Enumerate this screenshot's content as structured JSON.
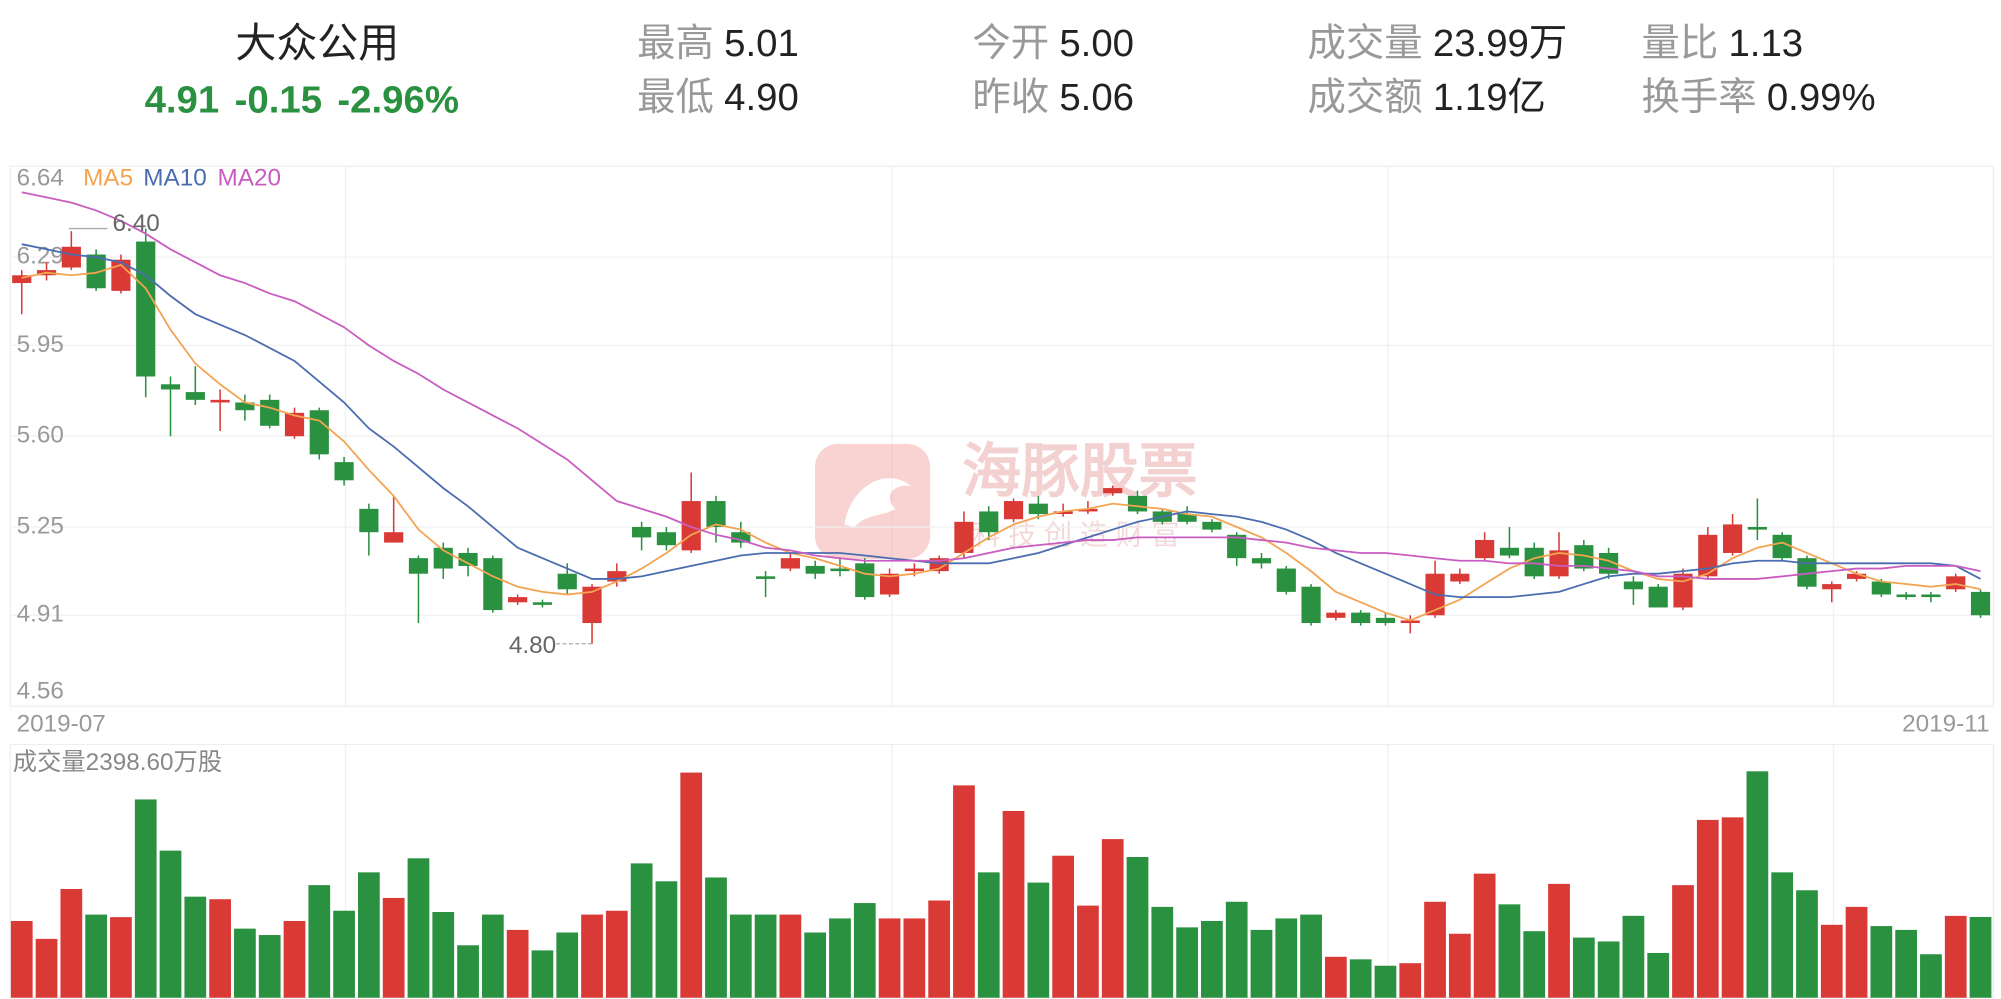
{
  "header": {
    "name": "大众公用",
    "price": "4.91",
    "change": "-0.15",
    "change_pct": "-2.96%",
    "stats": [
      {
        "label": "最高",
        "value": "5.01"
      },
      {
        "label": "最低",
        "value": "4.90"
      },
      {
        "label": "今开",
        "value": "5.00"
      },
      {
        "label": "昨收",
        "value": "5.06"
      },
      {
        "label": "成交量",
        "value": "23.99万"
      },
      {
        "label": "成交额",
        "value": "1.19亿"
      },
      {
        "label": "量比",
        "value": "1.13"
      },
      {
        "label": "换手率",
        "value": "0.99%"
      }
    ]
  },
  "watermark": {
    "brand": "海豚股票",
    "slogan": "科技创造财富"
  },
  "chart_data": {
    "type": "candlestick",
    "categories": [
      "2019-07",
      null,
      null,
      null,
      null,
      null,
      null,
      null,
      null,
      null,
      null,
      null,
      null,
      null,
      null,
      null,
      null,
      null,
      null,
      null,
      null,
      null,
      null,
      null,
      null,
      null,
      null,
      null,
      null,
      null,
      null,
      null,
      null,
      null,
      null,
      null,
      null,
      null,
      null,
      null,
      null,
      null,
      null,
      null,
      null,
      null,
      null,
      null,
      null,
      null,
      null,
      null,
      null,
      null,
      null,
      null,
      null,
      null,
      null,
      null,
      null,
      null,
      null,
      null,
      null,
      null,
      null,
      null,
      null,
      null,
      null,
      null,
      null,
      null,
      null,
      null,
      null,
      null,
      null,
      "2019-11"
    ],
    "open": [
      6.19,
      6.22,
      6.25,
      6.3,
      6.16,
      6.35,
      5.8,
      5.77,
      5.73,
      5.73,
      5.74,
      5.6,
      5.7,
      5.5,
      5.32,
      5.19,
      5.13,
      5.17,
      5.15,
      5.13,
      4.96,
      4.96,
      5.07,
      4.88,
      5.04,
      5.25,
      5.23,
      5.16,
      5.35,
      5.23,
      5.06,
      5.09,
      5.1,
      5.09,
      5.11,
      4.99,
      5.08,
      5.08,
      5.15,
      5.31,
      5.28,
      5.34,
      5.3,
      5.31,
      5.38,
      5.37,
      5.31,
      5.3,
      5.27,
      5.22,
      5.13,
      5.09,
      5.02,
      4.9,
      4.92,
      4.9,
      4.88,
      4.91,
      5.04,
      5.13,
      5.17,
      5.17,
      5.06,
      5.18,
      5.15,
      5.04,
      5.02,
      4.94,
      5.06,
      5.15,
      5.25,
      5.22,
      5.13,
      5.01,
      5.05,
      5.04,
      4.99,
      4.99,
      5.01,
      5.0
    ],
    "high": [
      6.24,
      6.27,
      6.39,
      6.32,
      6.3,
      6.4,
      5.83,
      5.87,
      5.78,
      5.76,
      5.76,
      5.71,
      5.71,
      5.52,
      5.34,
      5.37,
      5.14,
      5.19,
      5.17,
      5.14,
      4.99,
      4.97,
      5.11,
      5.03,
      5.11,
      5.27,
      5.25,
      5.46,
      5.37,
      5.27,
      5.08,
      5.15,
      5.12,
      5.13,
      5.13,
      5.09,
      5.11,
      5.14,
      5.31,
      5.33,
      5.36,
      5.37,
      5.34,
      5.35,
      5.41,
      5.39,
      5.32,
      5.33,
      5.28,
      5.23,
      5.15,
      5.1,
      5.03,
      4.93,
      4.93,
      4.92,
      4.91,
      5.12,
      5.09,
      5.23,
      5.25,
      5.19,
      5.23,
      5.2,
      5.17,
      5.06,
      5.03,
      5.09,
      5.25,
      5.3,
      5.36,
      5.23,
      5.14,
      5.04,
      5.08,
      5.05,
      5.0,
      5.0,
      5.07,
      5.01
    ],
    "low": [
      6.07,
      6.2,
      6.24,
      6.16,
      6.15,
      5.75,
      5.6,
      5.72,
      5.62,
      5.66,
      5.63,
      5.59,
      5.51,
      5.41,
      5.14,
      5.19,
      4.88,
      5.05,
      5.06,
      4.92,
      4.95,
      4.94,
      4.99,
      4.8,
      5.02,
      5.16,
      5.16,
      5.15,
      5.19,
      5.17,
      4.98,
      5.08,
      5.05,
      5.06,
      4.97,
      4.98,
      5.06,
      5.07,
      5.13,
      5.2,
      5.27,
      5.28,
      5.29,
      5.3,
      5.37,
      5.3,
      5.26,
      5.26,
      5.23,
      5.1,
      5.09,
      4.99,
      4.87,
      4.89,
      4.87,
      4.87,
      4.84,
      4.9,
      5.03,
      5.12,
      5.13,
      5.05,
      5.05,
      5.08,
      5.05,
      4.95,
      4.94,
      4.93,
      5.05,
      5.14,
      5.2,
      5.12,
      5.01,
      4.96,
      5.04,
      4.98,
      4.97,
      4.96,
      5.0,
      4.9
    ],
    "close": [
      6.22,
      6.24,
      6.33,
      6.17,
      6.28,
      5.83,
      5.78,
      5.74,
      5.74,
      5.7,
      5.64,
      5.69,
      5.53,
      5.43,
      5.23,
      5.23,
      5.07,
      5.09,
      5.1,
      4.93,
      4.98,
      4.95,
      5.01,
      5.02,
      5.08,
      5.21,
      5.18,
      5.35,
      5.25,
      5.19,
      5.05,
      5.13,
      5.07,
      5.08,
      4.98,
      5.07,
      5.09,
      5.13,
      5.27,
      5.23,
      5.35,
      5.3,
      5.31,
      5.32,
      5.4,
      5.31,
      5.27,
      5.27,
      5.24,
      5.13,
      5.11,
      5.0,
      4.88,
      4.92,
      4.88,
      4.88,
      4.89,
      5.07,
      5.07,
      5.2,
      5.14,
      5.06,
      5.16,
      5.09,
      5.07,
      5.01,
      4.94,
      5.07,
      5.22,
      5.26,
      5.24,
      5.13,
      5.02,
      5.03,
      5.07,
      4.99,
      4.98,
      4.98,
      5.06,
      4.91
    ],
    "volume": [
      2280,
      1748,
      3230,
      2470,
      2394,
      5890,
      4370,
      3002,
      2926,
      2052,
      1862,
      2280,
      3344,
      2584,
      3724,
      2964,
      4142,
      2546,
      1558,
      2470,
      2014,
      1406,
      1938,
      2470,
      2584,
      3990,
      3458,
      6688,
      3572,
      2470,
      2470,
      2470,
      1938,
      2356,
      2812,
      2356,
      2356,
      2888,
      6308,
      3724,
      5548,
      3420,
      4218,
      2736,
      4712,
      4180,
      2698,
      2090,
      2280,
      2850,
      2014,
      2356,
      2470,
      1216,
      1140,
      950,
      1026,
      2850,
      1900,
      3686,
      2774,
      1976,
      3382,
      1786,
      1672,
      2432,
      1330,
      3344,
      5282,
      5358,
      6726,
      3724,
      3192,
      2166,
      2698,
      2128,
      2014,
      1292,
      2432,
      2398.6
    ],
    "volume_label": "成交量2398.60万股",
    "up_color": "#d93a36",
    "down_color": "#2a9140",
    "ma_series": [
      {
        "name": "MA5",
        "color": "#f3a451",
        "values": [
          6.21,
          6.23,
          6.22,
          6.23,
          6.26,
          6.17,
          6.01,
          5.88,
          5.8,
          5.73,
          5.71,
          5.68,
          5.66,
          5.58,
          5.47,
          5.37,
          5.24,
          5.16,
          5.11,
          5.06,
          5.02,
          5.0,
          4.99,
          5.0,
          5.04,
          5.09,
          5.15,
          5.22,
          5.26,
          5.24,
          5.19,
          5.15,
          5.13,
          5.1,
          5.07,
          5.06,
          5.07,
          5.09,
          5.15,
          5.21,
          5.26,
          5.29,
          5.31,
          5.32,
          5.34,
          5.33,
          5.32,
          5.3,
          5.29,
          5.25,
          5.21,
          5.15,
          5.08,
          5.0,
          4.96,
          4.92,
          4.89,
          4.93,
          4.97,
          5.03,
          5.09,
          5.13,
          5.15,
          5.14,
          5.12,
          5.08,
          5.05,
          5.04,
          5.07,
          5.13,
          5.17,
          5.19,
          5.15,
          5.11,
          5.07,
          5.04,
          5.03,
          5.02,
          5.03,
          5.01
        ]
      },
      {
        "name": "MA10",
        "color": "#4a6db0",
        "values": [
          6.34,
          6.32,
          6.3,
          6.29,
          6.27,
          6.22,
          6.14,
          6.07,
          6.03,
          5.99,
          5.94,
          5.89,
          5.81,
          5.73,
          5.63,
          5.56,
          5.48,
          5.4,
          5.33,
          5.25,
          5.17,
          5.13,
          5.09,
          5.05,
          5.05,
          5.06,
          5.08,
          5.1,
          5.12,
          5.14,
          5.15,
          5.15,
          5.15,
          5.15,
          5.14,
          5.13,
          5.12,
          5.11,
          5.11,
          5.11,
          5.13,
          5.15,
          5.18,
          5.21,
          5.24,
          5.27,
          5.29,
          5.31,
          5.3,
          5.29,
          5.27,
          5.24,
          5.2,
          5.15,
          5.11,
          5.07,
          5.03,
          4.99,
          4.98,
          4.98,
          4.98,
          4.99,
          5.0,
          5.03,
          5.06,
          5.07,
          5.07,
          5.08,
          5.09,
          5.11,
          5.12,
          5.12,
          5.11,
          5.11,
          5.11,
          5.11,
          5.11,
          5.11,
          5.1,
          5.05
        ]
      },
      {
        "name": "MA20",
        "color": "#c95cc0",
        "values": [
          6.54,
          6.52,
          6.5,
          6.47,
          6.43,
          6.38,
          6.32,
          6.27,
          6.22,
          6.19,
          6.15,
          6.12,
          6.07,
          6.02,
          5.95,
          5.89,
          5.84,
          5.78,
          5.73,
          5.68,
          5.63,
          5.57,
          5.51,
          5.43,
          5.35,
          5.32,
          5.29,
          5.25,
          5.22,
          5.2,
          5.17,
          5.16,
          5.14,
          5.13,
          5.12,
          5.12,
          5.12,
          5.12,
          5.13,
          5.15,
          5.17,
          5.18,
          5.19,
          5.2,
          5.2,
          5.21,
          5.21,
          5.21,
          5.21,
          5.21,
          5.2,
          5.19,
          5.17,
          5.16,
          5.15,
          5.15,
          5.14,
          5.13,
          5.12,
          5.12,
          5.11,
          5.11,
          5.1,
          5.1,
          5.09,
          5.08,
          5.06,
          5.06,
          5.05,
          5.05,
          5.05,
          5.06,
          5.07,
          5.08,
          5.09,
          5.09,
          5.1,
          5.1,
          5.1,
          5.08
        ]
      }
    ],
    "high_label": "6.40",
    "low_label": "4.80",
    "ylim": [
      4.56,
      6.64
    ],
    "yticks": [
      6.64,
      6.29,
      5.95,
      {
        "value": 5.6,
        "label": "5.60"
      },
      5.25,
      4.91,
      4.56
    ],
    "grid": true
  }
}
